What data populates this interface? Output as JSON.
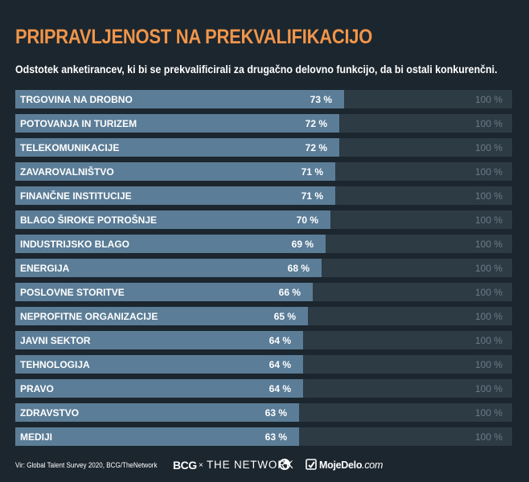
{
  "title": "PRIPRAVLJENOST NA PREKVALIFIKACIJO",
  "subtitle": "Odstotek anketirancev, ki bi se prekvalificirali za drugačno delovno funkcijo, da bi ostali konkurenčni.",
  "colors": {
    "title": "#f0954a",
    "bar": "#5b7d97",
    "track": "#2d3b45",
    "background": "#1c262e",
    "max_label": "#6c7b86"
  },
  "chart_data": {
    "type": "bar",
    "orientation": "horizontal",
    "categories": [
      "TRGOVINA NA DROBNO",
      "POTOVANJA IN TURIZEM",
      "TELEKOMUNIKACIJE",
      "ZAVAROVALNIŠTVO",
      "FINANČNE INSTITUCIJE",
      "BLAGO ŠIROKE POTROŠNJE",
      "INDUSTRIJSKO BLAGO",
      "ENERGIJA",
      "POSLOVNE STORITVE",
      "NEPROFITNE ORGANIZACIJE",
      "JAVNI SEKTOR",
      "TEHNOLOGIJA",
      "PRAVO",
      "ZDRAVSTVO",
      "MEDIJI"
    ],
    "values": [
      73,
      72,
      72,
      71,
      71,
      70,
      69,
      68,
      66,
      65,
      64,
      64,
      64,
      63,
      63
    ],
    "value_labels": [
      "73 %",
      "72 %",
      "72 %",
      "71 %",
      "71 %",
      "70 %",
      "69 %",
      "68 %",
      "66 %",
      "65 %",
      "64 %",
      "64 %",
      "64 %",
      "63 %",
      "63 %"
    ],
    "max": 100,
    "max_label": "100 %",
    "xlim": [
      0,
      100
    ]
  },
  "footer": {
    "source": "Vir: Global Talent Survey 2020, BCG/TheNetwork",
    "logo_bcg": "BCG",
    "logo_times": "×",
    "logo_network": "THE NETWORK",
    "logo_mojedelo_bold": "MojeDelo",
    "logo_mojedelo_suffix": ".com"
  }
}
